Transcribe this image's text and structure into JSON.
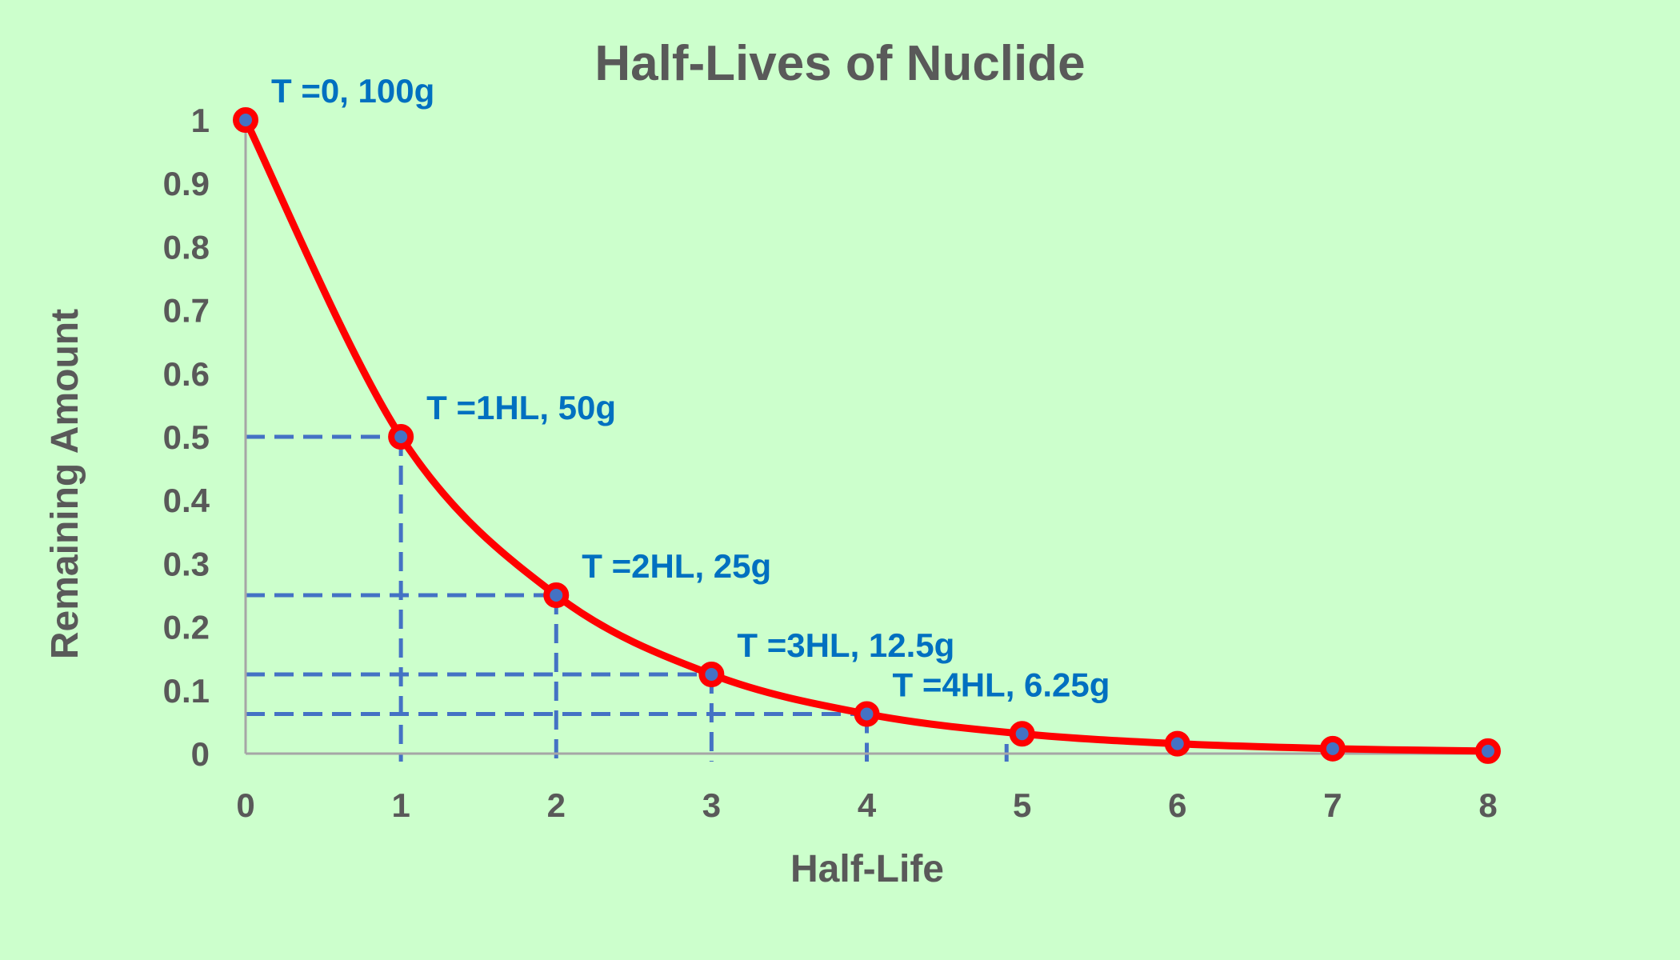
{
  "chart_data": {
    "type": "line",
    "title": "Half-Lives of Nuclide",
    "xlabel": "Half-Life",
    "ylabel": "Remaining Amount",
    "xlim": [
      0,
      8
    ],
    "ylim": [
      0,
      1
    ],
    "x_ticks": [
      "0",
      "1",
      "2",
      "3",
      "4",
      "5",
      "6",
      "7",
      "8"
    ],
    "y_ticks": [
      "0",
      "0.1",
      "0.2",
      "0.3",
      "0.4",
      "0.5",
      "0.6",
      "0.7",
      "0.8",
      "0.9",
      "1"
    ],
    "series": [
      {
        "x": [
          0,
          1,
          2,
          3,
          4,
          5,
          6,
          7,
          8
        ],
        "values": [
          1,
          0.5,
          0.25,
          0.125,
          0.0625,
          0.03125,
          0.015625,
          0.0078125,
          0.00390625
        ]
      }
    ],
    "annotations": [
      {
        "x": 0,
        "y": 1,
        "text": "T =0, 100g"
      },
      {
        "x": 1,
        "y": 0.5,
        "text": "T =1HL, 50g"
      },
      {
        "x": 2,
        "y": 0.25,
        "text": "T =2HL, 25g"
      },
      {
        "x": 3,
        "y": 0.125,
        "text": "T =3HL, 12.5g"
      },
      {
        "x": 4,
        "y": 0.0625,
        "text": "T =4HL, 6.25g"
      }
    ],
    "guide_lines": [
      {
        "x": 1,
        "y": 0.5
      },
      {
        "x": 2,
        "y": 0.25
      },
      {
        "x": 3,
        "y": 0.125
      },
      {
        "x": 4,
        "y": 0.0625
      }
    ],
    "extra_vertical_guide_x": 4.9,
    "grid": false,
    "legend": "none",
    "colors": {
      "background": "#ccffcc",
      "title": "#595959",
      "axis_text": "#595959",
      "axis_line": "#a6a6a6",
      "line": "#ff0000",
      "marker_center": "#4472c4",
      "guide": "#4472c4",
      "annotation": "#0070c0"
    }
  }
}
